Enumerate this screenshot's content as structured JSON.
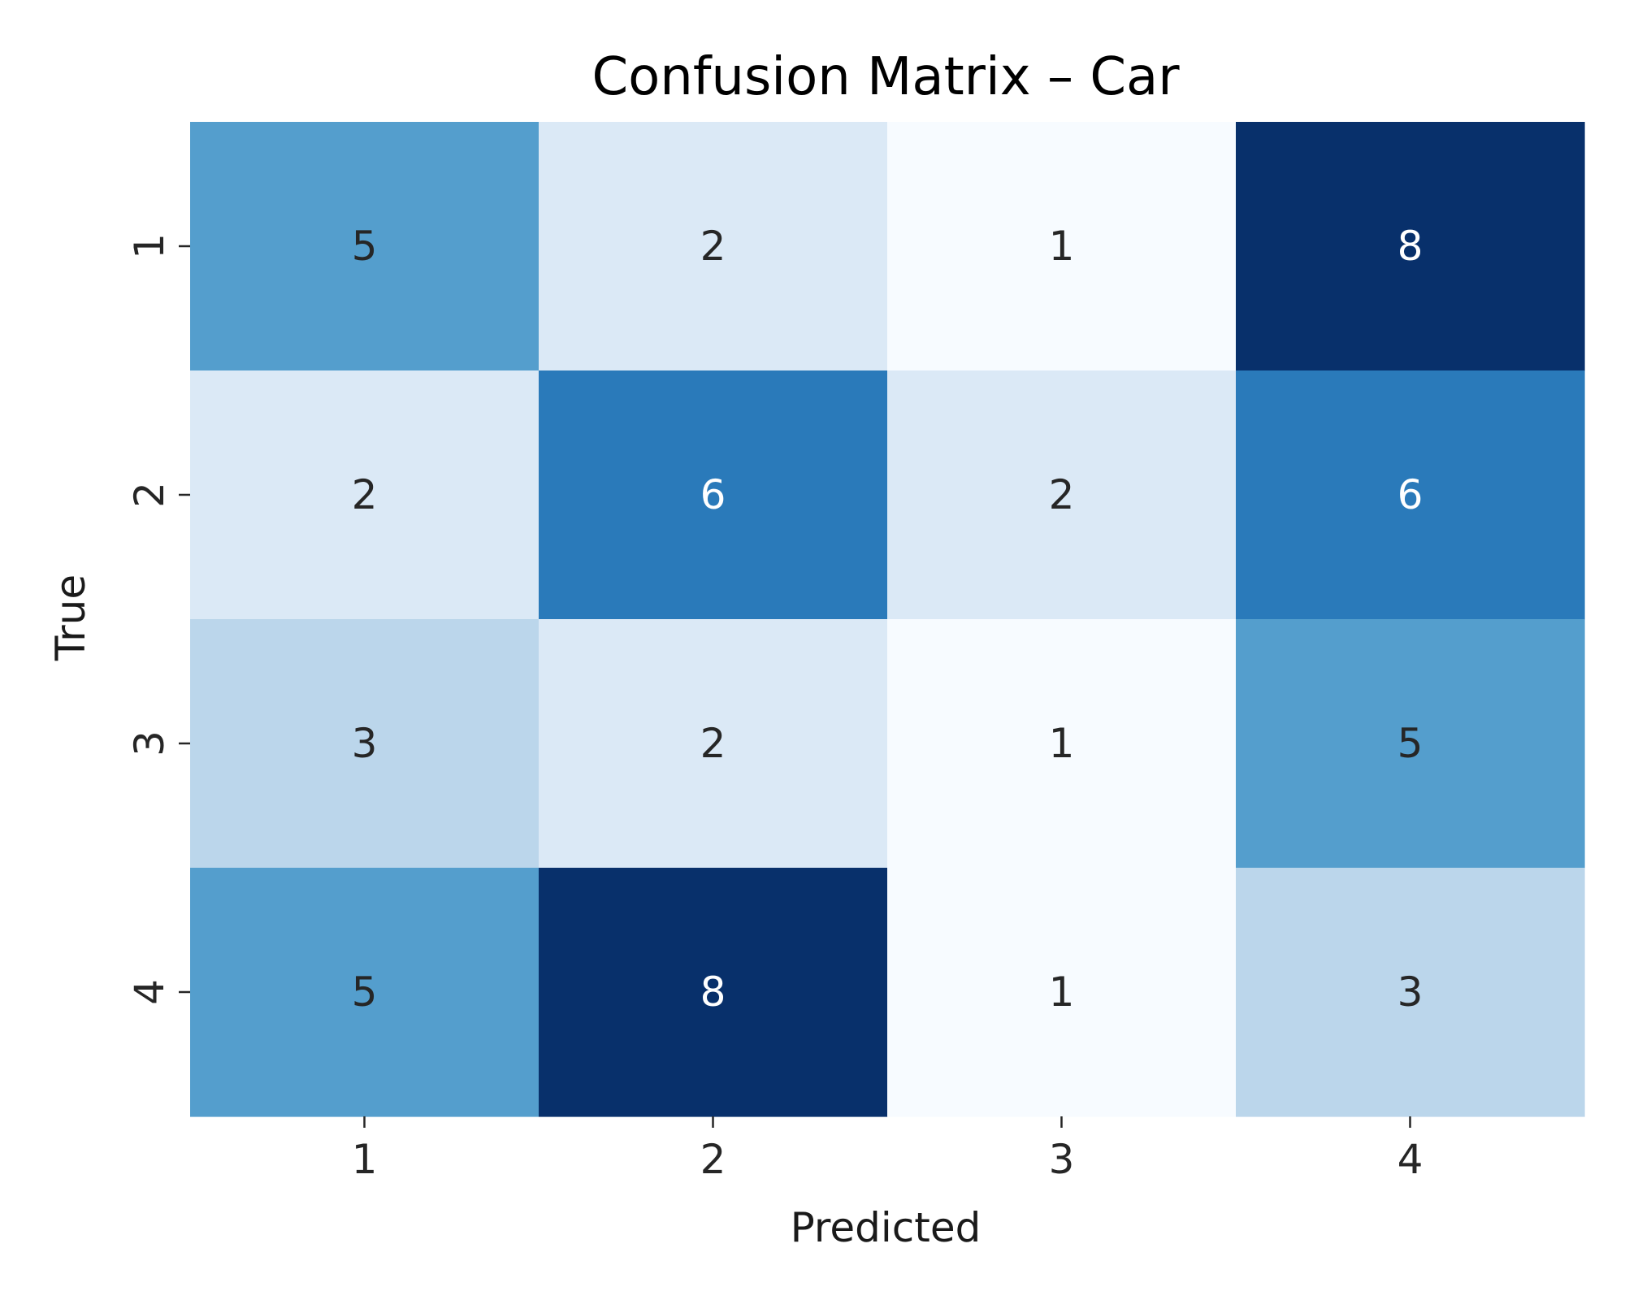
{
  "chart_data": {
    "type": "heatmap",
    "title": "Confusion Matrix – Car",
    "xlabel": "Predicted",
    "ylabel": "True",
    "x_categories": [
      "1",
      "2",
      "3",
      "4"
    ],
    "y_categories": [
      "1",
      "2",
      "3",
      "4"
    ],
    "values": [
      [
        5,
        2,
        1,
        8
      ],
      [
        2,
        6,
        2,
        6
      ],
      [
        3,
        2,
        1,
        5
      ],
      [
        5,
        8,
        1,
        3
      ]
    ],
    "colormap": "Blues",
    "value_range": [
      1,
      8
    ],
    "colorbar": false,
    "annotations": true,
    "colors": {
      "low": "#f7fbff",
      "high": "#08306b",
      "annotation_dark": "#262626",
      "annotation_light": "#ffffff"
    }
  }
}
